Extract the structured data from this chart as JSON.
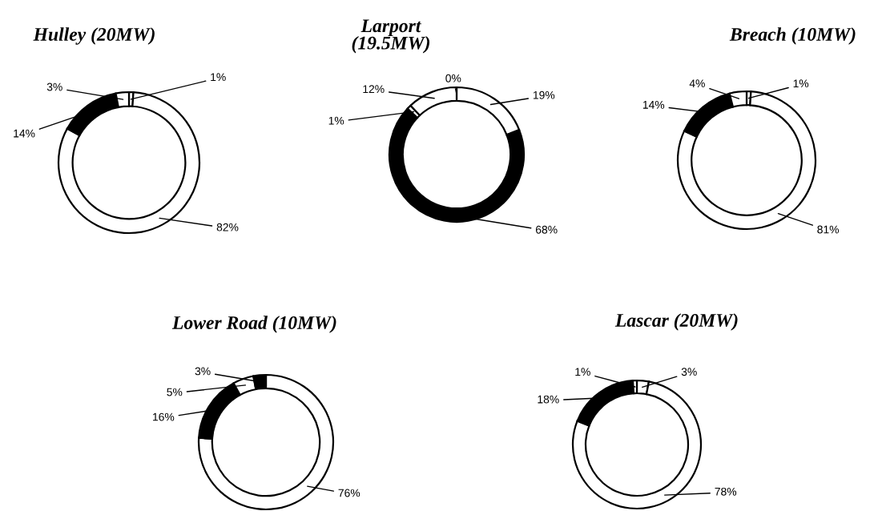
{
  "chart_data": [
    {
      "type": "donut",
      "title": "Hulley (20MW)",
      "categories": [
        null,
        null,
        null,
        null
      ],
      "values": [
        1,
        82,
        14,
        3
      ],
      "colors": [
        "#ffffff",
        "#ffffff",
        "#000000",
        "#ffffff"
      ],
      "value_labels": [
        "1%",
        "82%",
        "14%",
        "3%"
      ]
    },
    {
      "type": "donut",
      "title": "Larport\n(19.5MW)",
      "categories": [
        null,
        null,
        null,
        null,
        null
      ],
      "values": [
        0,
        19,
        68,
        1,
        12
      ],
      "colors": [
        "#ffffff",
        "#ffffff",
        "#000000",
        "#ffffff",
        "#ffffff"
      ],
      "value_labels": [
        "0%",
        "19%",
        "68%",
        "1%",
        "12%"
      ]
    },
    {
      "type": "donut",
      "title": "Breach (10MW)",
      "categories": [
        null,
        null,
        null,
        null
      ],
      "values": [
        1,
        81,
        14,
        4
      ],
      "colors": [
        "#ffffff",
        "#ffffff",
        "#000000",
        "#ffffff"
      ],
      "value_labels": [
        "1%",
        "81%",
        "14%",
        "4%"
      ]
    },
    {
      "type": "donut",
      "title": "Lower Road (10MW)",
      "categories": [
        null,
        null,
        null,
        null
      ],
      "values": [
        76,
        16,
        5,
        3
      ],
      "colors": [
        "#ffffff",
        "#000000",
        "#ffffff",
        "#000000"
      ],
      "value_labels": [
        "76%",
        "16%",
        "5%",
        "3%"
      ]
    },
    {
      "type": "donut",
      "title": "Lascar (20MW)",
      "categories": [
        null,
        null,
        null,
        null
      ],
      "values": [
        3,
        78,
        18,
        1
      ],
      "colors": [
        "#ffffff",
        "#ffffff",
        "#000000",
        "#ffffff"
      ],
      "value_labels": [
        "3%",
        "78%",
        "18%",
        "1%"
      ]
    }
  ]
}
